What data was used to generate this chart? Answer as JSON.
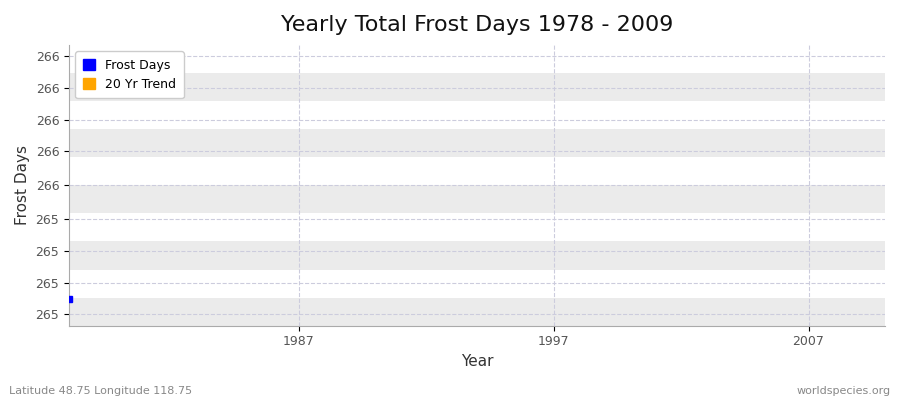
{
  "title": "Yearly Total Frost Days 1978 - 2009",
  "xlabel": "Year",
  "ylabel": "Frost Days",
  "fig_bg_color": "#ffffff",
  "plot_bg_color": "#ffffff",
  "stripe_color": "#ebebeb",
  "frost_days_color": "#0000ff",
  "trend_color": "#ffa500",
  "data_x": [
    1978
  ],
  "data_y": [
    265.0
  ],
  "xlim_left": 1978,
  "xlim_right": 2010,
  "y_min": 264.88,
  "y_max": 266.12,
  "ytick_values": [
    265.0,
    265.0,
    265.0,
    265.0,
    266.0,
    266.0,
    266.0,
    266.0,
    266.0
  ],
  "ytick_positions": [
    264.93,
    265.07,
    265.21,
    265.35,
    265.5,
    265.65,
    265.79,
    265.93,
    266.07
  ],
  "xticks": [
    1987,
    1997,
    2007
  ],
  "grid_color": "#ccccdd",
  "footer_left": "Latitude 48.75 Longitude 118.75",
  "footer_right": "worldspecies.org",
  "legend_labels": [
    "Frost Days",
    "20 Yr Trend"
  ],
  "legend_colors": [
    "#0000ff",
    "#ffa500"
  ],
  "title_fontsize": 16,
  "axis_label_fontsize": 11,
  "tick_fontsize": 9,
  "footer_fontsize": 8
}
